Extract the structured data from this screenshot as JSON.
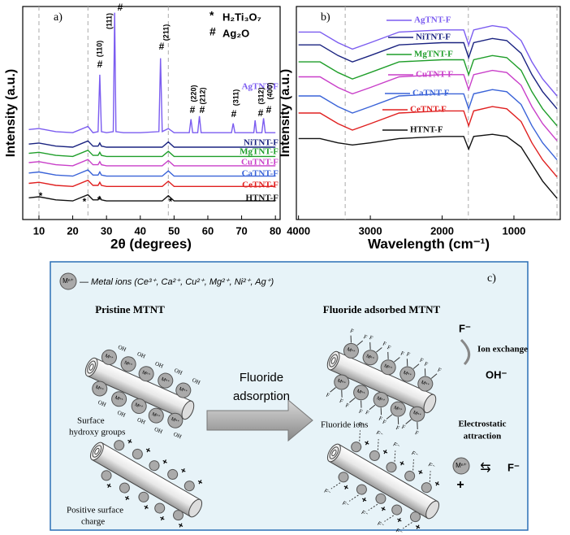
{
  "chart_data": [
    {
      "type": "line",
      "panel_label": "a)",
      "x_label": "2θ (degrees)",
      "y_label": "Intensity (a.u.)",
      "x": [
        7,
        10,
        15,
        20,
        24.5,
        26,
        27.5,
        28,
        28.5,
        30,
        32,
        32.4,
        32.8,
        35,
        40,
        45.5,
        46,
        46.5,
        48.3,
        50,
        54.5,
        55,
        55.5,
        57,
        57.5,
        58,
        62,
        67,
        67.5,
        68,
        71,
        73.6,
        74,
        74.4,
        76,
        76.5,
        77,
        80
      ],
      "xlim": [
        5.2,
        81.4
      ],
      "ylim": [
        0,
        103
      ],
      "xticks": [
        10,
        20,
        30,
        40,
        50,
        60,
        70,
        80
      ],
      "vlines": [
        10,
        24.5,
        48.3
      ],
      "series": [
        {
          "name": "AgTNT-F",
          "color": "#7b5cf0",
          "values": [
            43.5,
            44,
            42.5,
            42,
            45,
            42,
            42.5,
            70,
            42.5,
            42,
            42.5,
            100,
            42.5,
            42,
            42,
            42.5,
            78,
            42.5,
            44,
            42,
            42,
            48.5,
            42,
            42,
            50,
            42,
            42,
            42,
            46.5,
            42,
            42,
            42,
            48,
            42,
            42,
            49,
            42,
            42
          ]
        },
        {
          "name": "NiTNT-F",
          "color": "#1a2380",
          "values": [
            36.5,
            37,
            35.5,
            35,
            38,
            35.5,
            35.5,
            37,
            35.5,
            35,
            35,
            35,
            35,
            35,
            35,
            35,
            35,
            35,
            37.5,
            35,
            35,
            35,
            35,
            35,
            35,
            35,
            35,
            35,
            35,
            35,
            35,
            35,
            35,
            35,
            35,
            35,
            35,
            35
          ]
        },
        {
          "name": "MgTNT-F",
          "color": "#1f9e2a",
          "values": [
            32,
            32.5,
            31,
            30.5,
            33.5,
            31,
            31,
            32.5,
            31,
            30.5,
            30.5,
            30.5,
            30.5,
            30.5,
            30.5,
            30.5,
            30.5,
            30.5,
            33,
            30.5,
            30.5,
            30.5,
            30.5,
            30.5,
            30.5,
            30.5,
            30.5,
            30.5,
            30.5,
            30.5,
            30.5,
            30.5,
            30.5,
            30.5,
            30.5,
            30.5,
            30.5,
            30.5
          ]
        },
        {
          "name": "CuTNT-F",
          "color": "#c93fc9",
          "values": [
            27.5,
            28,
            26.5,
            26,
            29,
            26.5,
            26.5,
            28,
            26.5,
            26,
            26,
            26,
            26,
            26,
            26,
            26,
            26,
            26,
            28.5,
            26,
            26,
            26,
            26,
            26,
            26,
            26,
            26,
            26,
            26,
            26,
            26,
            26,
            26,
            26,
            26,
            26,
            26,
            26
          ]
        },
        {
          "name": "CaTNT-F",
          "color": "#3a63d8",
          "values": [
            22.5,
            23,
            21.5,
            21,
            24,
            21.5,
            21.5,
            23,
            21.5,
            21,
            21,
            21,
            21,
            21,
            21,
            21,
            21,
            21,
            23.5,
            21,
            21,
            21,
            21,
            21,
            21,
            21,
            21,
            21,
            21,
            21,
            21,
            21,
            21,
            21,
            21,
            21,
            21,
            21
          ]
        },
        {
          "name": "CeTNT-F",
          "color": "#e02020",
          "values": [
            17.5,
            18,
            16.5,
            16,
            19,
            16.5,
            16.5,
            18,
            16.5,
            16,
            16,
            16,
            16,
            16,
            16,
            16,
            16,
            16,
            18.5,
            16,
            16,
            16,
            16,
            16,
            16,
            16,
            16,
            16,
            16,
            16,
            16,
            16,
            16,
            16,
            16,
            16,
            16,
            16
          ]
        },
        {
          "name": "HTNT-F",
          "color": "#111111",
          "values": [
            10.5,
            11,
            9.5,
            9,
            12,
            9.5,
            9.5,
            11,
            9.5,
            9,
            9,
            9,
            9,
            9,
            9,
            9,
            9,
            9,
            11.5,
            9,
            9,
            9,
            9,
            9,
            9,
            9,
            9,
            9,
            9,
            9,
            9,
            9,
            9,
            9,
            9,
            9,
            9,
            9
          ]
        }
      ],
      "phase_legend": [
        {
          "symbol": "*",
          "name": "H₂Ti₃O₇"
        },
        {
          "symbol": "#",
          "name": "Ag₂O"
        }
      ],
      "annotations": [
        "#",
        "(110)",
        "#",
        "(111)",
        "#",
        "(211)",
        "#",
        "(220)",
        "#",
        "(212)",
        "#",
        "(311)",
        "#",
        "(312)",
        "#",
        "(400)",
        "*",
        "*",
        "*",
        "*"
      ]
    },
    {
      "type": "line",
      "panel_label": "b)",
      "x_label": "Wavelength (cm⁻¹)",
      "y_label": "Intensity (a.u.)",
      "x": [
        4000,
        3700,
        3450,
        3250,
        3000,
        2600,
        2000,
        1700,
        1630,
        1560,
        1300,
        1100,
        900,
        750,
        600,
        400
      ],
      "xlim": [
        4030,
        355
      ],
      "ylim": [
        0,
        100
      ],
      "xticks": [
        4000,
        3000,
        2000,
        1000
      ],
      "vlines": [
        3350,
        1635,
        400
      ],
      "series": [
        {
          "name": "AgTNT-F",
          "color": "#7b5cf0",
          "values": [
            88,
            88,
            83,
            80,
            83,
            88,
            89,
            89,
            82,
            89,
            91,
            90,
            84,
            74,
            66,
            58
          ]
        },
        {
          "name": "NiTNT-F",
          "color": "#1a2380",
          "values": [
            82,
            82,
            77,
            74,
            77,
            82,
            83,
            83,
            76,
            83,
            85,
            84,
            78,
            68,
            60,
            52
          ]
        },
        {
          "name": "MgTNT-F",
          "color": "#1f9e2a",
          "values": [
            74,
            74,
            69,
            66,
            69,
            74,
            75,
            75,
            68,
            75,
            77,
            76,
            70,
            60,
            52,
            44
          ]
        },
        {
          "name": "CuTNT-F",
          "color": "#c93fc9",
          "values": [
            67,
            67,
            62,
            59,
            62,
            67,
            68,
            68,
            61,
            68,
            70,
            69,
            63,
            53,
            45,
            37
          ]
        },
        {
          "name": "CaTNT-F",
          "color": "#3a63d8",
          "values": [
            58,
            58,
            53,
            50,
            53,
            58,
            59,
            59,
            52,
            59,
            61,
            60,
            54,
            44,
            36,
            28
          ]
        },
        {
          "name": "CeTNT-F",
          "color": "#e02020",
          "values": [
            50,
            50,
            45,
            42,
            45,
            50,
            51,
            51,
            44,
            51,
            53,
            52,
            46,
            36,
            28,
            20
          ]
        },
        {
          "name": "HTNT-F",
          "color": "#111111",
          "values": [
            38,
            38,
            36,
            35,
            36,
            38,
            39,
            39,
            33,
            39,
            40,
            39,
            34,
            26,
            18,
            10
          ]
        }
      ]
    }
  ],
  "diagram": {
    "panel_label": "c)",
    "legend_symbol": "Mⁿ⁺",
    "legend_text": "— Metal ions (Ce³⁺, Ca²⁺, Cu²⁺, Mg²⁺, Ni²⁺, Ag⁺)",
    "left_title": "Pristine MTNT",
    "surface_hydroxy": [
      "Surface",
      "hydroxy groups"
    ],
    "positive_charge": [
      "Positive surface",
      "charge"
    ],
    "process": [
      "Fluoride",
      "adsorption"
    ],
    "right_title": "Fluoride adsorbed MTNT",
    "fluoride": "F⁻",
    "ion_exchange": "Ion exchange",
    "hydroxide": "OH⁻",
    "fluoride_ions": "Fluoride ions",
    "electrostatic": [
      "Electrostatic",
      "attraction"
    ],
    "eq_metal": "Mⁿ⁺",
    "eq_plus": "+",
    "eq_arrow": "⇆",
    "eq_fluoride": "F⁻",
    "tube_labels": {
      "metal": "Mⁿ⁺",
      "hydroxyl": "OH",
      "fluorine": "F",
      "fluoride_ion": "F⁻",
      "plus": "+"
    }
  }
}
